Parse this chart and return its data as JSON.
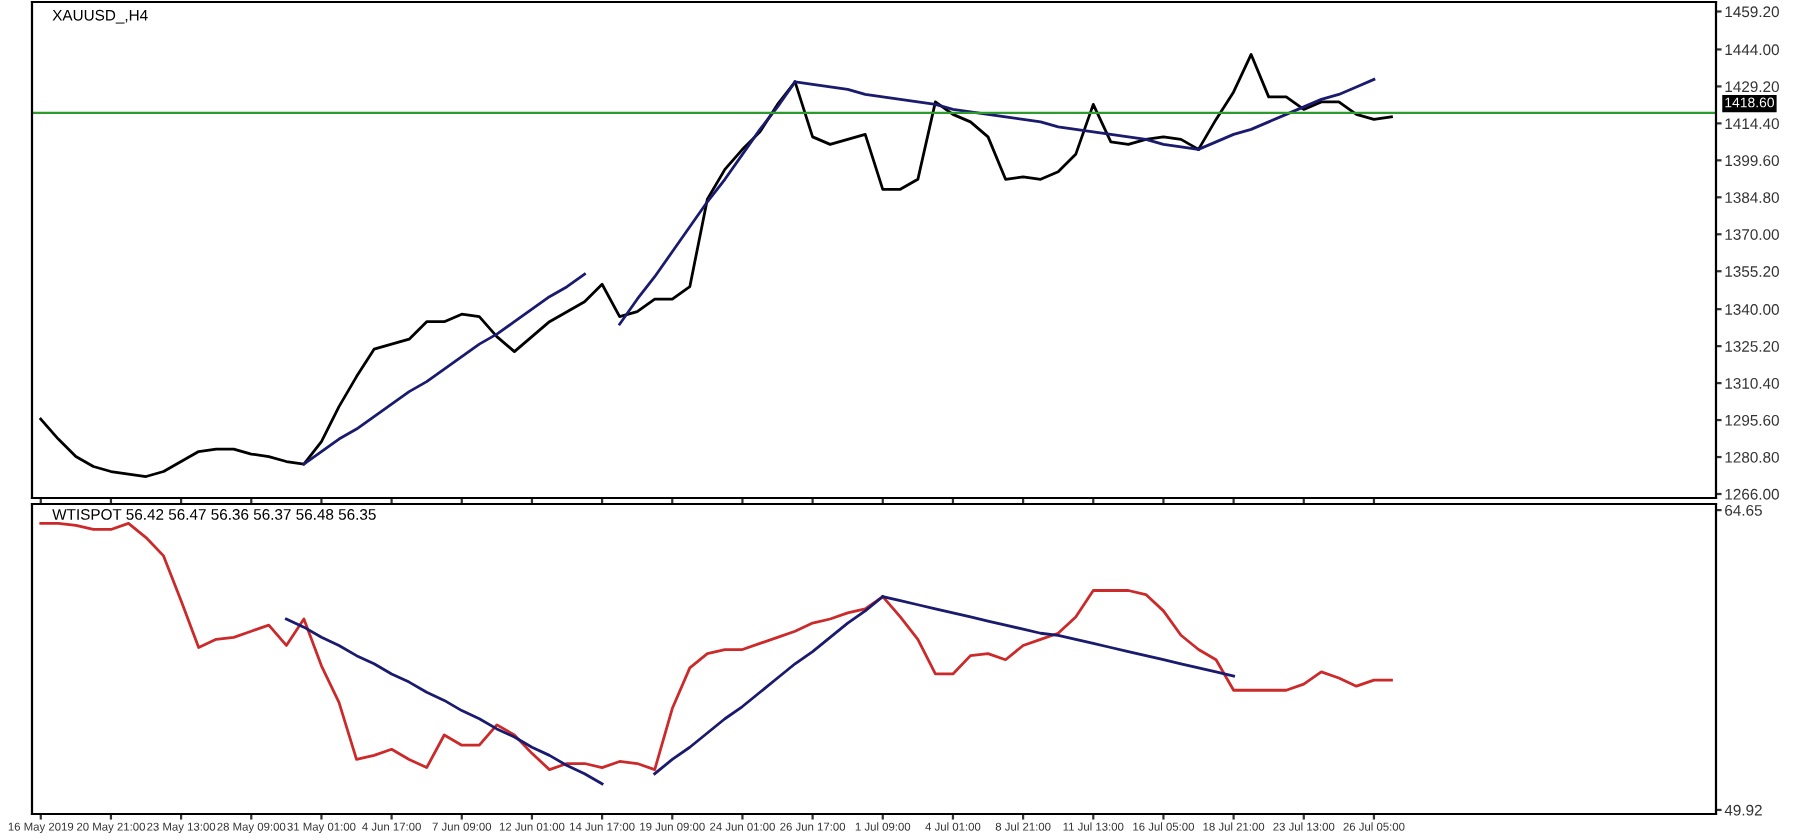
{
  "chart_data": [
    {
      "type": "line",
      "title": "XAUUSD_,H4",
      "tick_labels": "y",
      "grid": false,
      "marker": "none",
      "line_style": "solid",
      "ylim": [
        1264.4,
        1463
      ],
      "yticks": [
        {
          "value": 1266.0,
          "label": "1266.00"
        },
        {
          "value": 1280.8,
          "label": "1280.80"
        },
        {
          "value": 1295.6,
          "label": "1295.60"
        },
        {
          "value": 1310.4,
          "label": "1310.40"
        },
        {
          "value": 1325.2,
          "label": "1325.20"
        },
        {
          "value": 1340.0,
          "label": "1340.00"
        },
        {
          "value": 1355.2,
          "label": "1355.20"
        },
        {
          "value": 1370.0,
          "label": "1370.00"
        },
        {
          "value": 1384.8,
          "label": "1384.80"
        },
        {
          "value": 1399.6,
          "label": "1399.60"
        },
        {
          "value": 1414.4,
          "label": "1414.40"
        },
        {
          "value": 1429.2,
          "label": "1429.20"
        },
        {
          "value": 1444.0,
          "label": "1444.00"
        },
        {
          "value": 1459.2,
          "label": "1459.20"
        }
      ],
      "ref_lines": [
        {
          "axis": "y",
          "value": 1418.6,
          "label": "1418.60",
          "color": "#2e9b2e"
        }
      ],
      "series": [
        {
          "color": "#000000",
          "values": [
            1296,
            1288,
            1281,
            1277,
            1275,
            1274,
            1273,
            1275,
            1279,
            1283,
            1284,
            1284,
            1282,
            1281,
            1279,
            1278,
            1287,
            1301,
            1313,
            1324,
            1326,
            1328,
            1335,
            1335,
            1338,
            1337,
            1329,
            1323,
            1329,
            1335,
            1339,
            1343,
            1350,
            1337,
            1339,
            1344,
            1344,
            1349,
            1384,
            1396,
            1404,
            1411,
            1422,
            1431,
            1409,
            1406,
            1408,
            1410,
            1388,
            1388,
            1392,
            1423,
            1418,
            1415,
            1409,
            1392,
            1393,
            1392,
            1395,
            1402,
            1422,
            1407,
            1406,
            1408,
            1409,
            1408,
            1404,
            1416,
            1427,
            1442,
            1425,
            1425,
            1420,
            1423,
            1423,
            1418,
            1416,
            1417,
            null,
            null,
            null,
            null,
            null,
            null,
            null,
            null,
            null,
            null,
            null,
            null,
            null,
            null,
            null,
            null,
            null,
            null
          ]
        },
        {
          "color": "#1a1a6e",
          "values": [
            null,
            null,
            null,
            null,
            null,
            null,
            null,
            null,
            null,
            null,
            null,
            null,
            null,
            null,
            null,
            1278,
            1283,
            1288,
            1292,
            1297,
            1302,
            1307,
            1311,
            1316,
            1321,
            1326,
            1330,
            1335,
            1340,
            1345,
            1349,
            1354,
            null,
            null,
            null,
            null,
            null,
            null,
            null,
            null,
            null,
            null,
            null,
            null,
            null,
            null,
            null,
            null,
            null,
            null,
            null,
            null,
            null,
            null,
            null,
            null,
            null,
            null,
            null,
            null,
            null,
            null,
            null,
            null,
            null,
            null,
            null,
            null,
            null,
            null,
            null,
            null,
            null,
            null,
            null,
            null,
            null,
            null,
            null,
            null,
            null,
            null,
            null,
            null,
            null,
            null,
            null,
            null,
            null,
            null,
            null,
            null,
            null,
            null,
            null,
            null
          ]
        },
        {
          "color": "#1a1a6e",
          "values": [
            null,
            null,
            null,
            null,
            null,
            null,
            null,
            null,
            null,
            null,
            null,
            null,
            null,
            null,
            null,
            null,
            null,
            null,
            null,
            null,
            null,
            null,
            null,
            null,
            null,
            null,
            null,
            null,
            null,
            null,
            null,
            null,
            null,
            1334,
            1344,
            1353,
            1363,
            1373,
            1383,
            1392,
            1402,
            1412,
            1421,
            1431,
            null,
            null,
            null,
            null,
            null,
            null,
            null,
            null,
            null,
            null,
            null,
            null,
            null,
            null,
            null,
            null,
            null,
            null,
            null,
            null,
            null,
            null,
            null,
            null,
            null,
            null,
            null,
            null,
            null,
            null,
            null,
            null,
            null,
            null,
            null,
            null,
            null,
            null,
            null,
            null,
            null,
            null,
            null,
            null,
            null,
            null,
            null,
            null,
            null,
            null,
            null,
            null
          ]
        },
        {
          "color": "#1a1a6e",
          "values": [
            null,
            null,
            null,
            null,
            null,
            null,
            null,
            null,
            null,
            null,
            null,
            null,
            null,
            null,
            null,
            null,
            null,
            null,
            null,
            null,
            null,
            null,
            null,
            null,
            null,
            null,
            null,
            null,
            null,
            null,
            null,
            null,
            null,
            null,
            null,
            null,
            null,
            null,
            null,
            null,
            null,
            null,
            null,
            1431,
            1430,
            1429,
            1428,
            1426,
            1425,
            1424,
            1423,
            1422,
            1420,
            1419,
            1418,
            1417,
            1416,
            1415,
            1413,
            1412,
            1411,
            1410,
            1409,
            1408,
            1406,
            1405,
            1404,
            null,
            null,
            null,
            null,
            null,
            null,
            null,
            null,
            null,
            null,
            null,
            null,
            null,
            null,
            null,
            null,
            null,
            null,
            null,
            null,
            null,
            null,
            null,
            null,
            null,
            null,
            null,
            null,
            null
          ]
        },
        {
          "color": "#1a1a6e",
          "values": [
            null,
            null,
            null,
            null,
            null,
            null,
            null,
            null,
            null,
            null,
            null,
            null,
            null,
            null,
            null,
            null,
            null,
            null,
            null,
            null,
            null,
            null,
            null,
            null,
            null,
            null,
            null,
            null,
            null,
            null,
            null,
            null,
            null,
            null,
            null,
            null,
            null,
            null,
            null,
            null,
            null,
            null,
            null,
            null,
            null,
            null,
            null,
            null,
            null,
            null,
            null,
            null,
            null,
            null,
            null,
            null,
            null,
            null,
            null,
            null,
            null,
            null,
            null,
            null,
            null,
            null,
            1404,
            1407,
            1410,
            1412,
            1415,
            1418,
            1421,
            1424,
            1426,
            1429,
            1432,
            null,
            null,
            null,
            null,
            null,
            null,
            null,
            null,
            null,
            null,
            null,
            null,
            null,
            null,
            null,
            null,
            null,
            null,
            null
          ]
        }
      ]
    },
    {
      "type": "line",
      "title": "WTISPOT 56.42 56.47 56.36 56.37 56.48 56.35",
      "grid": false,
      "marker": "none",
      "line_style": "solid",
      "categories": [
        "16 May 2019",
        null,
        null,
        null,
        "20 May 21:00",
        null,
        null,
        null,
        "23 May 13:00",
        null,
        null,
        null,
        "28 May 09:00",
        null,
        null,
        null,
        "31 May 01:00",
        null,
        null,
        null,
        "4 Jun 17:00",
        null,
        null,
        null,
        "7 Jun 09:00",
        null,
        null,
        null,
        "12 Jun 01:00",
        null,
        null,
        null,
        "14 Jun 17:00",
        null,
        null,
        null,
        "19 Jun 09:00",
        null,
        null,
        null,
        "24 Jun 01:00",
        null,
        null,
        null,
        "26 Jun 17:00",
        null,
        null,
        null,
        "1 Jul 09:00",
        null,
        null,
        null,
        "4 Jul 01:00",
        null,
        null,
        null,
        "8 Jul 21:00",
        null,
        null,
        null,
        "11 Jul 13:00",
        null,
        null,
        null,
        "16 Jul 05:00",
        null,
        null,
        null,
        "18 Jul 21:00",
        null,
        null,
        null,
        "23 Jul 13:00",
        null,
        null,
        null,
        "26 Jul 05:00",
        null,
        null,
        null,
        null,
        null,
        null,
        null,
        null,
        null,
        null,
        null,
        null,
        null,
        null,
        null,
        null,
        null,
        null,
        null
      ],
      "ylim": [
        49.72,
        64.95
      ],
      "yticks": [
        {
          "value": 49.92,
          "label": "49.92"
        },
        {
          "value": 64.65,
          "label": "64.65"
        }
      ],
      "series": [
        {
          "color": "#cc2a2a",
          "values": [
            64.0,
            64.0,
            63.9,
            63.7,
            63.7,
            64.0,
            63.3,
            62.4,
            60.2,
            57.9,
            58.3,
            58.4,
            58.7,
            59.0,
            58.0,
            59.3,
            57.0,
            55.2,
            52.4,
            52.6,
            52.9,
            52.4,
            52.0,
            53.6,
            53.1,
            53.1,
            54.1,
            53.6,
            52.7,
            51.9,
            52.2,
            52.2,
            52.0,
            52.3,
            52.2,
            51.9,
            54.9,
            56.9,
            57.6,
            57.8,
            57.8,
            58.1,
            58.4,
            58.7,
            59.1,
            59.3,
            59.6,
            59.8,
            60.4,
            59.4,
            58.3,
            56.6,
            56.6,
            57.5,
            57.6,
            57.3,
            58.0,
            58.3,
            58.6,
            59.4,
            60.7,
            60.7,
            60.7,
            60.5,
            59.7,
            58.5,
            57.8,
            57.3,
            55.8,
            55.8,
            55.8,
            55.8,
            56.1,
            56.7,
            56.4,
            56.0,
            56.3,
            56.3,
            null,
            null,
            null,
            null,
            null,
            null,
            null,
            null,
            null,
            null,
            null,
            null,
            null,
            null,
            null,
            null,
            null,
            null
          ]
        },
        {
          "color": "#1a1a6e",
          "values": [
            null,
            null,
            null,
            null,
            null,
            null,
            null,
            null,
            null,
            null,
            null,
            null,
            null,
            null,
            59.3,
            58.9,
            58.4,
            58.0,
            57.5,
            57.1,
            56.6,
            56.2,
            55.7,
            55.3,
            54.8,
            54.4,
            53.9,
            53.5,
            53.0,
            52.6,
            52.1,
            51.7,
            51.2,
            null,
            null,
            null,
            null,
            null,
            null,
            null,
            null,
            null,
            null,
            null,
            null,
            null,
            null,
            null,
            null,
            null,
            null,
            null,
            null,
            null,
            null,
            null,
            null,
            null,
            null,
            null,
            null,
            null,
            null,
            null,
            null,
            null,
            null,
            null,
            null,
            null,
            null,
            null,
            null,
            null,
            null,
            null,
            null,
            null,
            null,
            null,
            null,
            null,
            null,
            null,
            null,
            null,
            null,
            null,
            null,
            null,
            null,
            null,
            null,
            null,
            null,
            null
          ]
        },
        {
          "color": "#1a1a6e",
          "values": [
            null,
            null,
            null,
            null,
            null,
            null,
            null,
            null,
            null,
            null,
            null,
            null,
            null,
            null,
            null,
            null,
            null,
            null,
            null,
            null,
            null,
            null,
            null,
            null,
            null,
            null,
            null,
            null,
            null,
            null,
            null,
            null,
            null,
            null,
            null,
            51.7,
            52.4,
            53.0,
            53.7,
            54.4,
            55.0,
            55.7,
            56.4,
            57.1,
            57.7,
            58.4,
            59.1,
            59.7,
            60.4,
            null,
            null,
            null,
            null,
            null,
            null,
            null,
            null,
            null,
            null,
            null,
            null,
            null,
            null,
            null,
            null,
            null,
            null,
            null,
            null,
            null,
            null,
            null,
            null,
            null,
            null,
            null,
            null,
            null,
            null,
            null,
            null,
            null,
            null,
            null,
            null,
            null,
            null,
            null,
            null,
            null,
            null,
            null,
            null,
            null,
            null,
            null
          ]
        },
        {
          "color": "#1a1a6e",
          "values": [
            null,
            null,
            null,
            null,
            null,
            null,
            null,
            null,
            null,
            null,
            null,
            null,
            null,
            null,
            null,
            null,
            null,
            null,
            null,
            null,
            null,
            null,
            null,
            null,
            null,
            null,
            null,
            null,
            null,
            null,
            null,
            null,
            null,
            null,
            null,
            null,
            null,
            null,
            null,
            null,
            null,
            null,
            null,
            null,
            null,
            null,
            null,
            null,
            60.4,
            60.2,
            60.0,
            59.8,
            59.6,
            59.4,
            59.2,
            59.0,
            58.8,
            58.6,
            58.5,
            58.3,
            58.1,
            57.9,
            57.7,
            57.5,
            57.3,
            57.1,
            56.9,
            56.7,
            56.5,
            null,
            null,
            null,
            null,
            null,
            null,
            null,
            null,
            null,
            null,
            null,
            null,
            null,
            null,
            null,
            null,
            null,
            null,
            null,
            null,
            null,
            null,
            null,
            null,
            null,
            null,
            null
          ]
        }
      ]
    }
  ]
}
